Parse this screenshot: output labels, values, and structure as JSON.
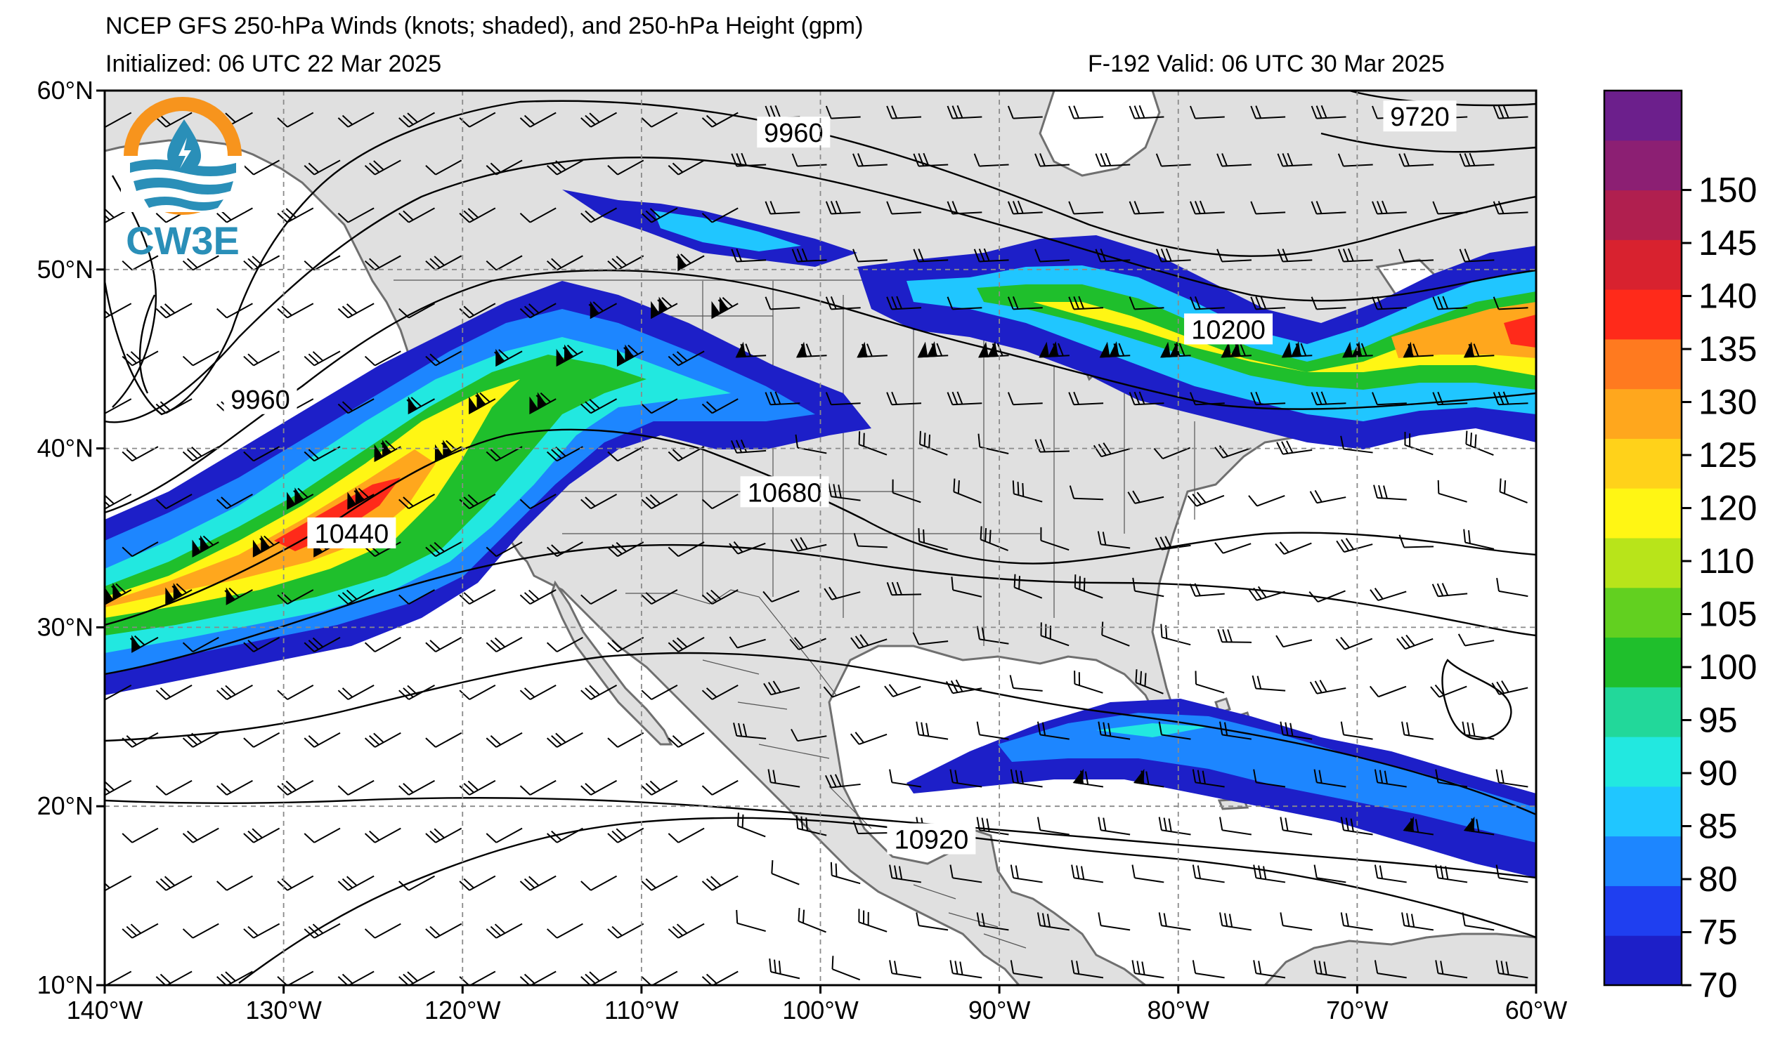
{
  "header": {
    "title": "NCEP GFS 250-hPa Winds (knots; shaded), and 250-hPa Height (gpm)",
    "initialized": "Initialized: 06 UTC 22 Mar 2025",
    "valid": "F-192  Valid: 06 UTC 30 Mar 2025"
  },
  "logo": {
    "text": "CW3E",
    "colors": {
      "sun": "#f7941d",
      "water": "#2a8fb8"
    }
  },
  "axes": {
    "lon_ticks": [
      "140°W",
      "130°W",
      "120°W",
      "110°W",
      "100°W",
      "90°W",
      "80°W",
      "70°W",
      "60°W"
    ],
    "lat_ticks": [
      "60°N",
      "50°N",
      "40°N",
      "30°N",
      "20°N",
      "10°N"
    ],
    "lon_range": [
      -140,
      -60
    ],
    "lat_range": [
      10,
      60
    ],
    "grid": "dashed"
  },
  "colorbar": {
    "levels": [
      "70",
      "75",
      "80",
      "85",
      "90",
      "95",
      "100",
      "105",
      "110",
      "120",
      "125",
      "130",
      "135",
      "140",
      "145",
      "150"
    ],
    "colors": [
      "#1d1fc8",
      "#1f3ff0",
      "#1d86ff",
      "#20c6ff",
      "#22e8e0",
      "#22d89a",
      "#1fbf2c",
      "#62d020",
      "#b8e41a",
      "#fff614",
      "#ffd21a",
      "#ffa71d",
      "#ff7a1f",
      "#ff2a1a",
      "#d8222f",
      "#b01f4f",
      "#8c1f73",
      "#6c1f8c"
    ]
  },
  "contour_labels": [
    {
      "text": "9960",
      "lon": -101.5,
      "lat": 57.6
    },
    {
      "text": "9720",
      "lon": -66.5,
      "lat": 58.5
    },
    {
      "text": "10200",
      "lon": -77.2,
      "lat": 46.6
    },
    {
      "text": "9960",
      "lon": -131.3,
      "lat": 42.7
    },
    {
      "text": "10440",
      "lon": -126.2,
      "lat": 35.2
    },
    {
      "text": "10680",
      "lon": -102.0,
      "lat": 37.5
    },
    {
      "text": "10920",
      "lon": -93.8,
      "lat": 18.1
    }
  ]
}
